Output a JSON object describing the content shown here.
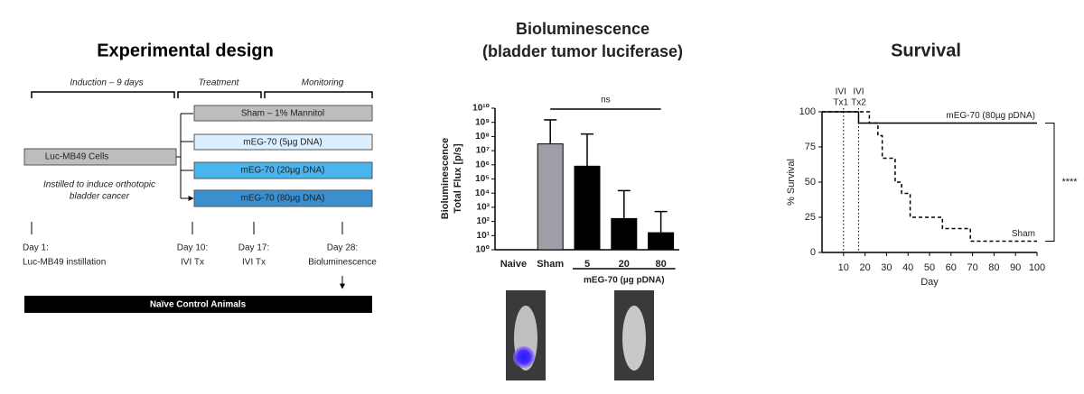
{
  "design": {
    "title": "Experimental design",
    "phases": [
      "Induction – 9 days",
      "Treatment",
      "Monitoring"
    ],
    "start_box": "Luc-MB49 Cells",
    "start_note": [
      "Instilled to induce orthotopic",
      "bladder cancer"
    ],
    "groups": [
      "Sham – 1% Mannitol",
      "mEG-70 (5µg DNA)",
      "mEG-70 (20µg DNA)",
      "mEG-70 (80µg DNA)"
    ],
    "timeline": [
      [
        "Day 1:",
        "Luc-MB49 instillation"
      ],
      [
        "Day 10:",
        "IVI Tx"
      ],
      [
        "Day 17:",
        "IVI Tx"
      ],
      [
        "Day 28:",
        "Bioluminescence"
      ]
    ],
    "control": "Naïve Control Animals"
  },
  "chart_data": [
    {
      "type": "bar",
      "title": [
        "Bioluminescence",
        "(bladder tumor luciferase)"
      ],
      "ylabel": [
        "Bioluminescence",
        "Total Flux [p/s]"
      ],
      "categories": [
        "Naive",
        "Sham",
        "5",
        "20",
        "80"
      ],
      "values": [
        null,
        30000000,
        800000,
        160,
        16
      ],
      "error_top": [
        null,
        1500000000,
        150000000,
        15000,
        500
      ],
      "colors": [
        "#000000",
        "#9e9ea6",
        "#000000",
        "#000000",
        "#000000"
      ],
      "log_y": true,
      "ylim": [
        1,
        10000000000
      ],
      "yticks": [
        {
          "value": 1,
          "label": "10⁰"
        },
        {
          "value": 10,
          "label": "10¹"
        },
        {
          "value": 100,
          "label": "10²"
        },
        {
          "value": 1000,
          "label": "10³"
        },
        {
          "value": 10000,
          "label": "10⁴"
        },
        {
          "value": 100000,
          "label": "10⁵"
        },
        {
          "value": 1000000,
          "label": "10⁶"
        },
        {
          "value": 10000000,
          "label": "10⁷"
        },
        {
          "value": 100000000,
          "label": "10⁸"
        },
        {
          "value": 1000000000,
          "label": "10⁹"
        },
        {
          "value": 10000000000,
          "label": "10¹⁰"
        }
      ],
      "annotation": "ns",
      "group_label": "mEG-70 (µg pDNA)"
    },
    {
      "type": "line",
      "title": "Survival",
      "ylabel": "% Survival",
      "xlabel": "Day",
      "xlim": [
        0,
        100
      ],
      "xticks": [
        10,
        20,
        30,
        40,
        50,
        60,
        70,
        80,
        90,
        100
      ],
      "ylim": [
        0,
        100
      ],
      "yticks": [
        0,
        25,
        50,
        75,
        100
      ],
      "series": [
        {
          "name": "mEG-70 (80µg pDNA)",
          "color": "#000000",
          "dash": false,
          "x": [
            0,
            17,
            17,
            100
          ],
          "values": [
            100,
            100,
            92,
            92
          ]
        },
        {
          "name": "Sham",
          "color": "#000000",
          "dash": true,
          "x": [
            0,
            22,
            22,
            26,
            26,
            28,
            28,
            34,
            34,
            37,
            37,
            41,
            41,
            56,
            56,
            69,
            69,
            100
          ],
          "values": [
            100,
            100,
            92,
            92,
            83,
            83,
            67,
            67,
            50,
            50,
            42,
            42,
            25,
            25,
            17,
            17,
            8,
            8
          ]
        }
      ],
      "markers": [
        {
          "x": 10,
          "label": [
            "IVI",
            "Tx1"
          ]
        },
        {
          "x": 17,
          "label": [
            "IVI",
            "Tx2"
          ]
        }
      ],
      "annotation": "****"
    }
  ]
}
